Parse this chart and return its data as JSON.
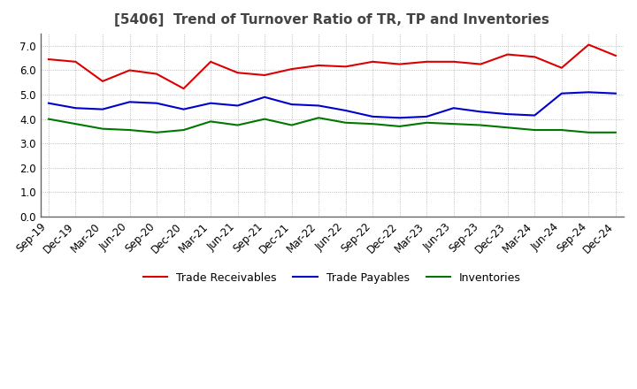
{
  "title": "[5406]  Trend of Turnover Ratio of TR, TP and Inventories",
  "x_labels": [
    "Sep-19",
    "Dec-19",
    "Mar-20",
    "Jun-20",
    "Sep-20",
    "Dec-20",
    "Mar-21",
    "Jun-21",
    "Sep-21",
    "Dec-21",
    "Mar-22",
    "Jun-22",
    "Sep-22",
    "Dec-22",
    "Mar-23",
    "Jun-23",
    "Sep-23",
    "Dec-23",
    "Mar-24",
    "Jun-24",
    "Sep-24",
    "Dec-24"
  ],
  "trade_receivables": [
    6.45,
    6.35,
    5.55,
    6.0,
    5.85,
    5.25,
    6.35,
    5.9,
    5.8,
    6.05,
    6.2,
    6.15,
    6.35,
    6.25,
    6.35,
    6.35,
    6.25,
    6.65,
    6.55,
    6.1,
    7.05,
    6.6
  ],
  "trade_payables": [
    4.65,
    4.45,
    4.4,
    4.7,
    4.65,
    4.4,
    4.65,
    4.55,
    4.9,
    4.6,
    4.55,
    4.35,
    4.1,
    4.05,
    4.1,
    4.45,
    4.3,
    4.2,
    4.15,
    5.05,
    5.1,
    5.05
  ],
  "inventories": [
    4.0,
    3.8,
    3.6,
    3.55,
    3.45,
    3.55,
    3.9,
    3.75,
    4.0,
    3.75,
    4.05,
    3.85,
    3.8,
    3.7,
    3.85,
    3.8,
    3.75,
    3.65,
    3.55,
    3.55,
    3.45,
    3.45
  ],
  "tr_color": "#dd0000",
  "tp_color": "#0000cc",
  "inv_color": "#007700",
  "ylim": [
    0.0,
    7.5
  ],
  "yticks": [
    0.0,
    1.0,
    2.0,
    3.0,
    4.0,
    5.0,
    6.0,
    7.0
  ],
  "legend_labels": [
    "Trade Receivables",
    "Trade Payables",
    "Inventories"
  ],
  "background_color": "#ffffff",
  "grid_color": "#aaaaaa",
  "title_color": "#444444",
  "title_fontsize": 11,
  "tick_fontsize": 8.5,
  "line_width": 1.5
}
